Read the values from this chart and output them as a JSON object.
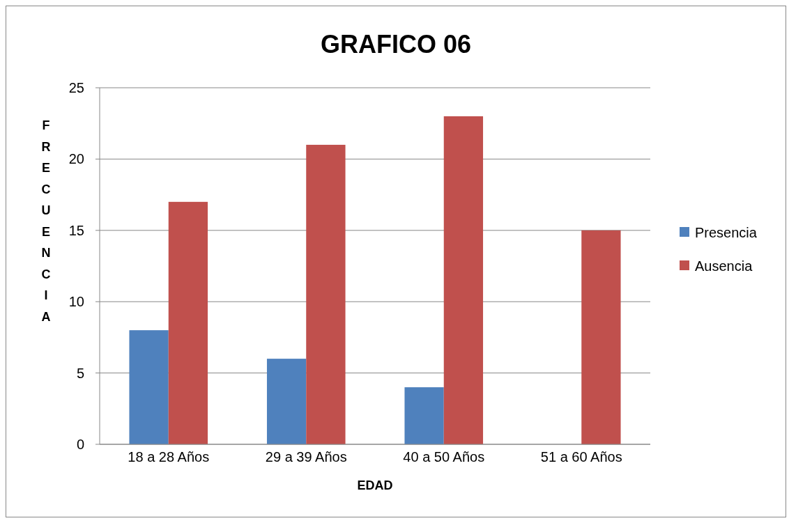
{
  "chart_data": {
    "type": "bar",
    "title": "GRAFICO 06",
    "xlabel": "EDAD",
    "ylabel": "FRECUENCIA",
    "categories": [
      "18 a 28 Años",
      "29 a 39 Años",
      "40 a 50 Años",
      "51 a 60 Años"
    ],
    "series": [
      {
        "name": "Presencia",
        "color": "#4f81bd",
        "values": [
          8,
          6,
          4,
          0
        ]
      },
      {
        "name": "Ausencia",
        "color": "#c0504d",
        "values": [
          17,
          21,
          23,
          15
        ]
      }
    ],
    "ylim": [
      0,
      25
    ],
    "yticks": [
      0,
      5,
      10,
      15,
      20,
      25
    ],
    "grid": "y",
    "legend": "right"
  }
}
